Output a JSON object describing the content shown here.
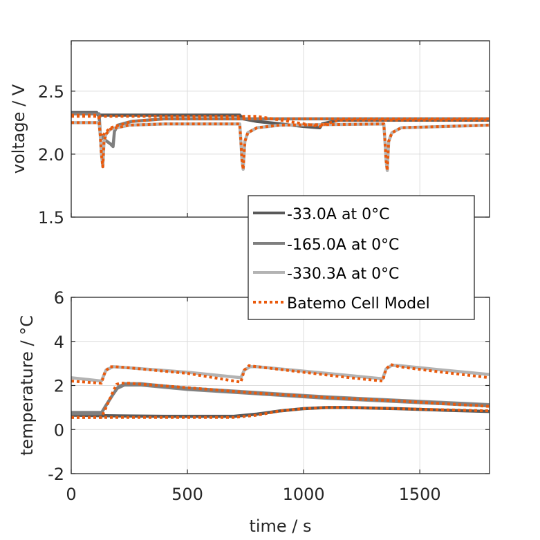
{
  "chart_data": [
    {
      "type": "line",
      "id": "voltage",
      "title": "",
      "xlabel": "",
      "ylabel": "voltage / V",
      "xlim": [
        0,
        1800
      ],
      "ylim": [
        1.5,
        2.9
      ],
      "xticks": [
        0,
        500,
        1000,
        1500
      ],
      "xtick_labels": [
        "",
        "",
        "",
        ""
      ],
      "yticks": [
        1.5,
        2.0,
        2.5
      ],
      "ytick_labels": [
        "1.5",
        "2.0",
        "2.5"
      ],
      "grid": true,
      "series": [
        {
          "name": "-33.0A at 0°C",
          "color": "#595959",
          "style": "solid",
          "x": [
            0,
            110,
            115,
            725,
            740,
            800,
            900,
            1000,
            1070,
            1080,
            1150,
            1800
          ],
          "y": [
            2.33,
            2.33,
            2.31,
            2.31,
            2.28,
            2.26,
            2.24,
            2.22,
            2.21,
            2.24,
            2.27,
            2.27
          ]
        },
        {
          "name": "-165.0A at 0°C",
          "color": "#7f7f7f",
          "style": "solid",
          "x": [
            0,
            120,
            125,
            140,
            170,
            180,
            186,
            200,
            260,
            400,
            725,
            735,
            900,
            1800
          ],
          "y": [
            2.32,
            2.32,
            2.16,
            2.12,
            2.08,
            2.06,
            2.18,
            2.23,
            2.26,
            2.28,
            2.28,
            2.28,
            2.28,
            2.28
          ]
        },
        {
          "name": "-330.3A at 0°C",
          "color": "#b3b3b3",
          "style": "solid",
          "x": [
            0,
            120,
            125,
            130,
            136,
            141,
            150,
            170,
            250,
            400,
            725,
            730,
            735,
            740,
            747,
            760,
            800,
            900,
            1345,
            1350,
            1355,
            1360,
            1366,
            1380,
            1420,
            1800
          ],
          "y": [
            2.25,
            2.25,
            2.15,
            2.0,
            1.9,
            2.1,
            2.16,
            2.2,
            2.23,
            2.24,
            2.24,
            2.1,
            1.95,
            1.88,
            2.1,
            2.17,
            2.21,
            2.23,
            2.24,
            2.1,
            1.95,
            1.87,
            2.1,
            2.17,
            2.21,
            2.23
          ]
        },
        {
          "name": "Batemo Cell Model",
          "color": "#ea5a0c",
          "style": "dotted",
          "segments": [
            {
              "x": [
                0,
                112,
                120,
                800,
                1070,
                1080,
                1150,
                1800
              ],
              "y": [
                2.31,
                2.31,
                2.3,
                2.3,
                2.22,
                2.23,
                2.27,
                2.27
              ]
            },
            {
              "x": [
                0,
                118,
                125,
                135,
                145,
                170,
                260,
                400,
                725,
                740,
                1800
              ],
              "y": [
                2.3,
                2.3,
                2.16,
                2.14,
                2.17,
                2.21,
                2.26,
                2.28,
                2.28,
                2.28,
                2.28
              ]
            },
            {
              "x": [
                0,
                120,
                125,
                130,
                136,
                141,
                150,
                170,
                250,
                400,
                725,
                730,
                735,
                740,
                747,
                760,
                800,
                900,
                1345,
                1350,
                1355,
                1360,
                1366,
                1380,
                1420,
                1800
              ],
              "y": [
                2.25,
                2.25,
                2.15,
                2.0,
                1.9,
                2.1,
                2.16,
                2.2,
                2.23,
                2.24,
                2.24,
                2.1,
                1.95,
                1.88,
                2.1,
                2.17,
                2.21,
                2.23,
                2.24,
                2.1,
                1.95,
                1.87,
                2.1,
                2.17,
                2.21,
                2.23
              ]
            }
          ]
        }
      ]
    },
    {
      "type": "line",
      "id": "temperature",
      "title": "",
      "xlabel": "time / s",
      "ylabel": "temperature / °C",
      "xlim": [
        0,
        1800
      ],
      "ylim": [
        -2,
        6
      ],
      "xticks": [
        0,
        500,
        1000,
        1500
      ],
      "xtick_labels": [
        "0",
        "500",
        "1000",
        "1500"
      ],
      "yticks": [
        -2,
        0,
        2,
        4,
        6
      ],
      "ytick_labels": [
        "-2",
        "0",
        "2",
        "4",
        "6"
      ],
      "grid": true,
      "series": [
        {
          "name": "-33.0A at 0°C",
          "color": "#595959",
          "style": "solid",
          "x": [
            0,
            200,
            400,
            700,
            800,
            900,
            1000,
            1100,
            1200,
            1400,
            1600,
            1800
          ],
          "y": [
            0.65,
            0.62,
            0.6,
            0.6,
            0.7,
            0.85,
            0.95,
            1.0,
            1.0,
            0.95,
            0.88,
            0.82
          ]
        },
        {
          "name": "-165.0A at 0°C",
          "color": "#7f7f7f",
          "style": "solid",
          "x": [
            0,
            130,
            150,
            180,
            200,
            230,
            300,
            500,
            800,
            1100,
            1400,
            1800
          ],
          "y": [
            0.75,
            0.75,
            1.1,
            1.6,
            1.9,
            2.05,
            2.05,
            1.85,
            1.65,
            1.45,
            1.3,
            1.1
          ],
          "band": 0.2
        },
        {
          "name": "-330.3A at 0°C",
          "color": "#b3b3b3",
          "style": "solid",
          "x": [
            0,
            130,
            150,
            180,
            250,
            500,
            730,
            745,
            770,
            800,
            1000,
            1200,
            1340,
            1355,
            1380,
            1410,
            1600,
            1800
          ],
          "y": [
            2.35,
            2.2,
            2.7,
            2.85,
            2.8,
            2.6,
            2.35,
            2.7,
            2.85,
            2.85,
            2.65,
            2.45,
            2.3,
            2.75,
            2.92,
            2.9,
            2.7,
            2.5
          ]
        },
        {
          "name": "Batemo Cell Model",
          "color": "#ea5a0c",
          "style": "dotted",
          "segments": [
            {
              "x": [
                0,
                200,
                400,
                700,
                800,
                900,
                1000,
                1100,
                1200,
                1400,
                1600,
                1800
              ],
              "y": [
                0.55,
                0.55,
                0.55,
                0.55,
                0.65,
                0.85,
                0.95,
                1.0,
                1.0,
                0.95,
                0.9,
                0.85
              ]
            },
            {
              "x": [
                0,
                130,
                150,
                175,
                195,
                210,
                250,
                500,
                800,
                1100,
                1400,
                1800
              ],
              "y": [
                0.55,
                0.55,
                1.0,
                1.6,
                2.05,
                2.1,
                2.1,
                1.9,
                1.65,
                1.45,
                1.3,
                1.05
              ]
            },
            {
              "x": [
                0,
                130,
                145,
                165,
                190,
                250,
                500,
                730,
                745,
                765,
                800,
                1000,
                1200,
                1340,
                1355,
                1375,
                1410,
                1600,
                1800
              ],
              "y": [
                2.2,
                2.1,
                2.6,
                2.85,
                2.85,
                2.8,
                2.55,
                2.15,
                2.7,
                2.9,
                2.85,
                2.6,
                2.35,
                2.2,
                2.75,
                2.95,
                2.85,
                2.6,
                2.35
              ]
            }
          ]
        }
      ]
    }
  ],
  "legend": {
    "placement": "between-axes-right",
    "entries": [
      {
        "label": "-33.0A at 0°C",
        "color": "#595959",
        "style": "solid"
      },
      {
        "label": "-165.0A at 0°C",
        "color": "#7f7f7f",
        "style": "solid"
      },
      {
        "label": "-330.3A at 0°C",
        "color": "#b3b3b3",
        "style": "solid"
      },
      {
        "label": "Batemo Cell Model",
        "color": "#ea5a0c",
        "style": "dotted"
      }
    ]
  }
}
